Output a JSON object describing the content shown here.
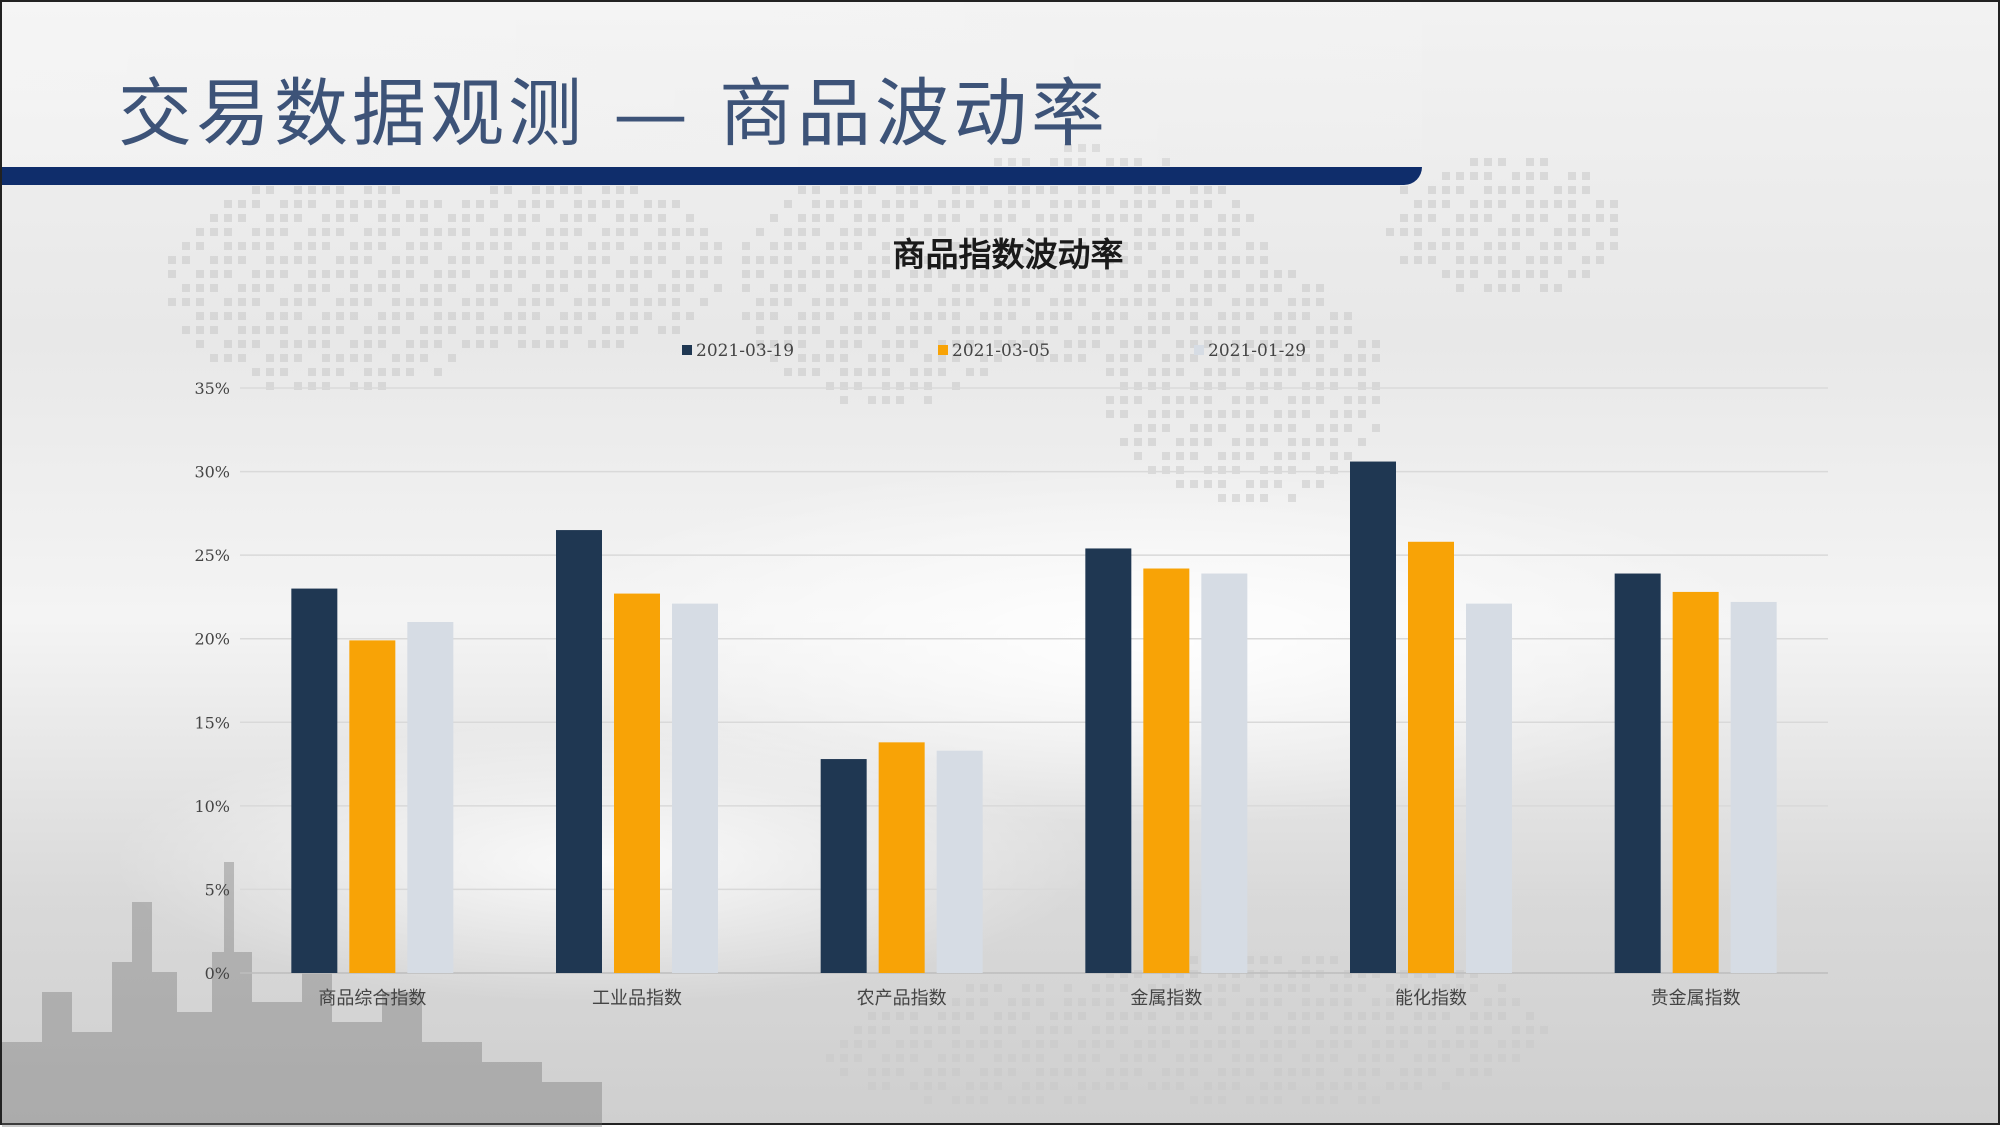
{
  "page": {
    "title": "交易数据观测 — 商品波动率"
  },
  "chart_data": {
    "type": "bar",
    "title": "商品指数波动率",
    "xlabel": "",
    "ylabel": "",
    "categories": [
      "商品综合指数",
      "工业品指数",
      "农产品指数",
      "金属指数",
      "能化指数",
      "贵金属指数"
    ],
    "series": [
      {
        "name": "2021-03-19",
        "color": "#1f3752",
        "values": [
          23.0,
          26.5,
          12.8,
          25.4,
          30.6,
          23.9
        ]
      },
      {
        "name": "2021-03-05",
        "color": "#f8a306",
        "values": [
          19.9,
          22.7,
          13.8,
          24.2,
          25.8,
          22.8
        ]
      },
      {
        "name": "2021-01-29",
        "color": "#d6dce4",
        "values": [
          21.0,
          22.1,
          13.3,
          23.9,
          22.1,
          22.2
        ]
      }
    ],
    "ylim": [
      0,
      35
    ],
    "ytick_labels": [
      "0%",
      "5%",
      "10%",
      "15%",
      "20%",
      "25%",
      "30%",
      "35%"
    ],
    "grid": true,
    "legend_position": "top"
  }
}
